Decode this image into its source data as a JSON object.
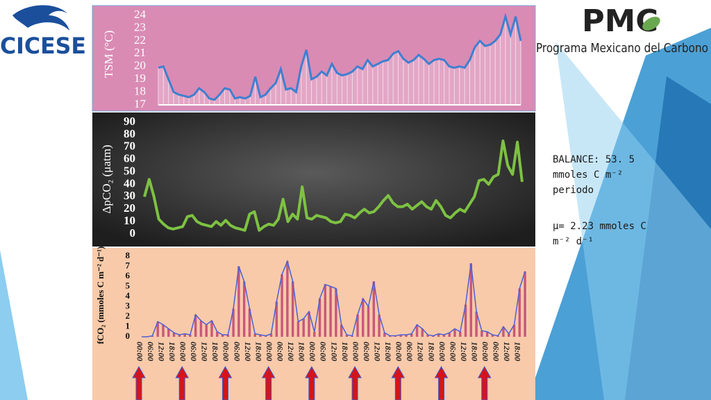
{
  "logos": {
    "left": "CICESE",
    "right_short": "PMC",
    "right_long": "Programa Mexicano del Carbono"
  },
  "notes": {
    "balance": "BALANCE: 53. 5",
    "balance_unit": "mmoles C m⁻²",
    "balance_period": "periodo",
    "mean": "μ= 2.23 mmoles C",
    "mean_unit": "m⁻² d⁻¹"
  },
  "chart_data": [
    {
      "type": "area",
      "y_label": "TSM (°C)",
      "color": "#3f7fd0",
      "fill_color": "#f6dbe9",
      "ylim": [
        17,
        24
      ],
      "yticks": [
        17,
        18,
        19,
        20,
        21,
        22,
        23,
        24
      ],
      "values": [
        19.9,
        20,
        19,
        18,
        17.8,
        17.7,
        17.6,
        17.8,
        18.3,
        18,
        17.5,
        17.4,
        17.8,
        18.3,
        18.2,
        17.5,
        17.6,
        17.5,
        17.7,
        19.2,
        17.6,
        17.8,
        18.3,
        18.7,
        19.8,
        18.2,
        18.3,
        18,
        20,
        21.3,
        19,
        19.2,
        19.6,
        19.3,
        20.2,
        19.5,
        19.3,
        19.4,
        19.6,
        20,
        19.8,
        20.5,
        20,
        20.2,
        20.4,
        20.5,
        21,
        21.2,
        20.6,
        20.3,
        20.5,
        20.9,
        20.6,
        20.2,
        20.5,
        20.6,
        20.5,
        20,
        19.9,
        20,
        19.9,
        20.5,
        21.5,
        22,
        21.6,
        21.7,
        22,
        22.5,
        23.9,
        22.5,
        23.9,
        22
      ]
    },
    {
      "type": "line",
      "y_label": "ΔpCO₂ (μatm)",
      "color": "#7dc242",
      "ylim": [
        0,
        90
      ],
      "yticks": [
        0,
        10,
        20,
        30,
        40,
        50,
        60,
        70,
        80,
        90
      ],
      "values": [
        30,
        44,
        30,
        12,
        8,
        5,
        4,
        5,
        6,
        14,
        15,
        10,
        8,
        7,
        6,
        10,
        7,
        11,
        7,
        5,
        4,
        3,
        16,
        18,
        3,
        6,
        8,
        7,
        12,
        28,
        10,
        16,
        12,
        38,
        13,
        12,
        15,
        14,
        13,
        10,
        9,
        10,
        16,
        15,
        13,
        17,
        20,
        17,
        18,
        22,
        27,
        31,
        25,
        22,
        22,
        24,
        20,
        23,
        26,
        22,
        20,
        27,
        22,
        15,
        13,
        17,
        20,
        18,
        24,
        30,
        43,
        44,
        40,
        46,
        48,
        75,
        55,
        48,
        74,
        42
      ]
    },
    {
      "type": "bar",
      "y_label": "fCO₂ (mmoles C m⁻² d⁻¹)",
      "color": "#c8587a",
      "line_color": "#4b5fd6",
      "arrow_color": "#d4141b",
      "ylim": [
        0,
        8
      ],
      "yticks": [
        0,
        1,
        2,
        3,
        4,
        5,
        6,
        7,
        8
      ],
      "categories": [
        "00:00",
        null,
        "06:00",
        null,
        "12:00",
        null,
        "18:00",
        null,
        "00:00",
        null,
        "06:00",
        null,
        "12:00",
        null,
        "18:00",
        null,
        "00:00",
        null,
        "06:00",
        null,
        "12:00",
        null,
        "18:00",
        null,
        "00:00",
        null,
        "06:00",
        null,
        "12:00",
        null,
        "18:00",
        null,
        "00:00",
        null,
        "06:00",
        null,
        "12:00",
        null,
        "18:00",
        null,
        "00:00",
        null,
        "06:00",
        null,
        "12:00",
        null,
        "18:00",
        null,
        "00:00",
        null,
        "06:00",
        null,
        "12:00",
        null,
        "18:00",
        null,
        "00:00",
        null,
        "06:00",
        null,
        "12:00",
        null,
        "18:00",
        null,
        "00:00",
        null,
        "06:00",
        null,
        "12:00",
        null,
        "18:00",
        null
      ],
      "values": [
        0,
        0,
        0.1,
        1.5,
        1.2,
        0.8,
        0.4,
        0.2,
        0.3,
        0.2,
        2.2,
        1.6,
        1.2,
        1.6,
        0.5,
        0.2,
        0.2,
        2.8,
        7,
        5.5,
        2.8,
        0.3,
        0.2,
        0.1,
        0.3,
        3.5,
        6.2,
        7.5,
        5.5,
        1.5,
        1.8,
        2.5,
        0.5,
        3.8,
        5.2,
        5,
        4.8,
        1.2,
        0.2,
        0.1,
        2.2,
        3.8,
        3,
        5.5,
        2.2,
        0.4,
        0.1,
        0.1,
        0.2,
        0.2,
        0.3,
        1.2,
        0.8,
        0.2,
        0.1,
        0.3,
        0.2,
        0.4,
        0.8,
        0.5,
        3.2,
        7.3,
        2.5,
        0.6,
        0.5,
        0.2,
        0.1,
        1,
        0.3,
        1.2,
        4.8,
        6.5
      ]
    }
  ]
}
